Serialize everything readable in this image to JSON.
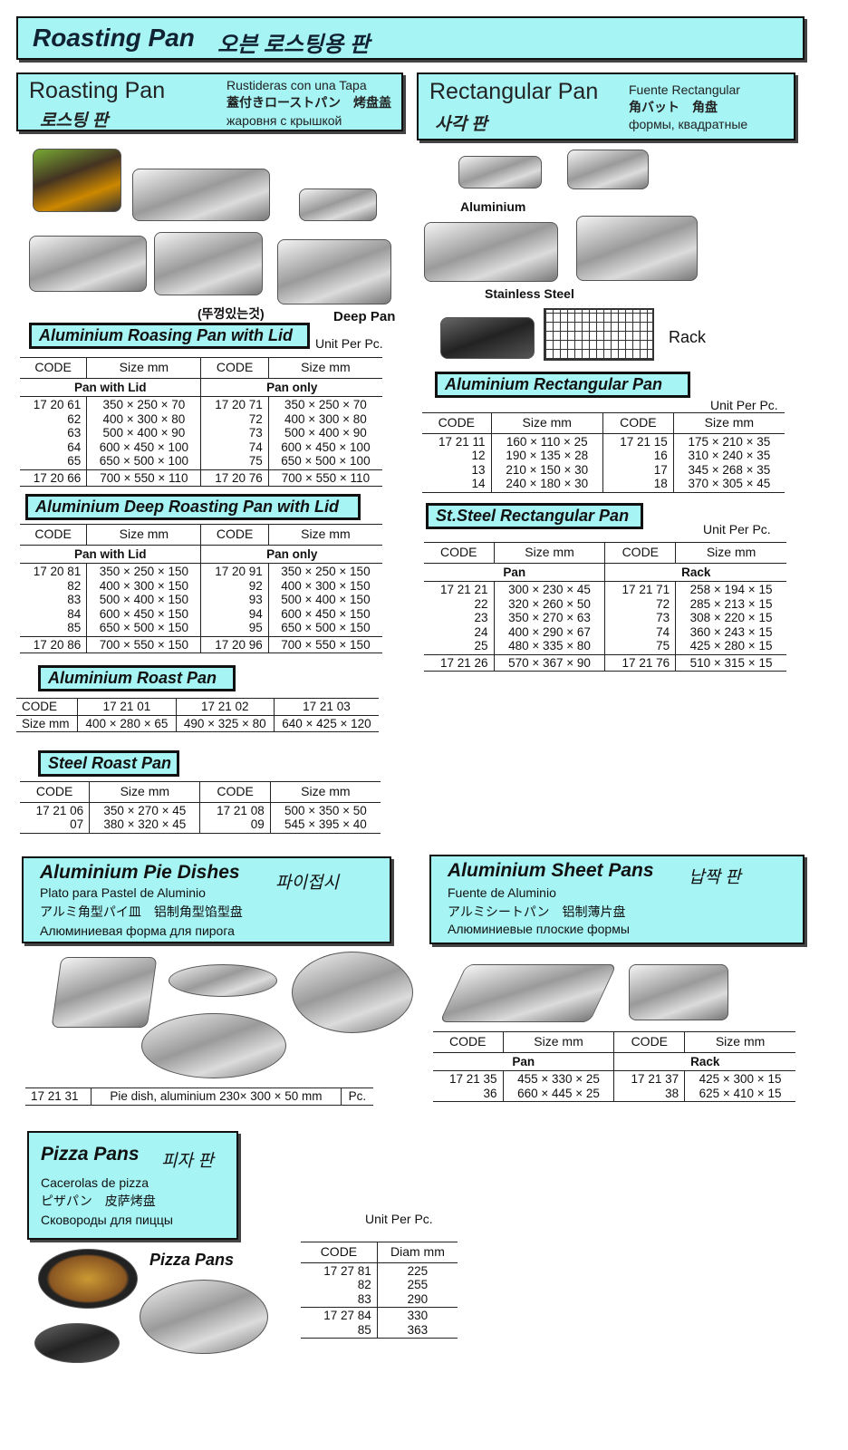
{
  "banner": {
    "en": "Roasting Pan",
    "ko": "오븐 로스팅용 판"
  },
  "roast_header": {
    "en": "Roasting Pan",
    "ko": "로스팅 판",
    "es": "Rustideras con una Tapa",
    "ja_zh": "蓋付きローストパン　烤盘盖",
    "ru": "жаровня с крышкой"
  },
  "rect_header": {
    "en": "Rectangular Pan",
    "ko": "사각 판",
    "es": "Fuente Rectangular",
    "ja_zh": "角バット　角盘",
    "ru": "формы, квадратные"
  },
  "labels": {
    "lid_ko": "(뚜껑있는것)",
    "deep_pan": "Deep Pan",
    "aluminium": "Aluminium",
    "stainless": "Stainless Steel",
    "rack": "Rack",
    "pizza_pans": "Pizza Pans",
    "unit": "Unit Per Pc."
  },
  "titles": {
    "t1": "Aluminium Roasing Pan with Lid",
    "t2": "Aluminium Deep Roasting Pan with Lid",
    "t3": "Aluminium Roast Pan",
    "t4": "Steel Roast Pan",
    "t5": "Aluminium Rectangular Pan",
    "t6": "St.Steel Rectangular Pan"
  },
  "tables": {
    "t1": {
      "header": [
        "CODE",
        "Size mm",
        "CODE",
        "Size mm"
      ],
      "sub": [
        "Pan with Lid",
        "Pan only"
      ],
      "groups": [
        [
          [
            "17 20 61",
            "62",
            "63",
            "64",
            "65"
          ],
          [
            "350 × 250 ×   70",
            "400 × 300 ×   80",
            "500 × 400 ×   90",
            "600 × 450 × 100",
            "650 × 500 × 100"
          ],
          [
            "17 20 71",
            "72",
            "73",
            "74",
            "75"
          ],
          [
            "350 × 250 ×   70",
            "400 × 300 ×   80",
            "500 × 400 ×   90",
            "600 × 450 × 100",
            "650 × 500 × 100"
          ]
        ],
        [
          [
            "17 20 66"
          ],
          [
            "700 × 550 × 110"
          ],
          [
            "17 20 76"
          ],
          [
            "700 × 550 × 110"
          ]
        ]
      ]
    },
    "t2": {
      "header": [
        "CODE",
        "Size mm",
        "CODE",
        "Size mm"
      ],
      "sub": [
        "Pan with Lid",
        "Pan only"
      ],
      "groups": [
        [
          [
            "17 20 81",
            "82",
            "83",
            "84",
            "85"
          ],
          [
            "350 × 250 × 150",
            "400 × 300 × 150",
            "500 × 400 × 150",
            "600 × 450 × 150",
            "650 × 500 × 150"
          ],
          [
            "17 20 91",
            "92",
            "93",
            "94",
            "95"
          ],
          [
            "350 × 250 × 150",
            "400 × 300 × 150",
            "500 × 400 × 150",
            "600 × 450 × 150",
            "650 × 500 × 150"
          ]
        ],
        [
          [
            "17 20 86"
          ],
          [
            "700 × 550 × 150"
          ],
          [
            "17 20 96"
          ],
          [
            "700 × 550 × 150"
          ]
        ]
      ]
    },
    "t3": {
      "rows": [
        [
          "CODE",
          "17 21 01",
          "17 21 02",
          "17 21 03"
        ],
        [
          "Size mm",
          "400 × 280 × 65",
          "490 × 325 × 80",
          "640 × 425 × 120"
        ]
      ]
    },
    "t4": {
      "header": [
        "CODE",
        "Size mm",
        "CODE",
        "Size mm"
      ],
      "groups": [
        [
          [
            "17 21 06",
            "07"
          ],
          [
            "350 × 270 × 45",
            "380 × 320 × 45"
          ],
          [
            "17 21 08",
            "09"
          ],
          [
            "500 × 350 × 50",
            "545 × 395 × 40"
          ]
        ]
      ]
    },
    "t5": {
      "header": [
        "CODE",
        "Size mm",
        "CODE",
        "Size mm"
      ],
      "groups": [
        [
          [
            "17 21 11",
            "12",
            "13",
            "14"
          ],
          [
            "160 × 110 × 25",
            "190 × 135 × 28",
            "210 × 150 × 30",
            "240 × 180 × 30"
          ],
          [
            "17 21 15",
            "16",
            "17",
            "18"
          ],
          [
            "175 × 210 × 35",
            "310 × 240 × 35",
            "345 × 268 × 35",
            "370 × 305 × 45"
          ]
        ]
      ]
    },
    "t6": {
      "header": [
        "CODE",
        "Size mm",
        "CODE",
        "Size mm"
      ],
      "sub": [
        "Pan",
        "Rack"
      ],
      "groups": [
        [
          [
            "17 21 21",
            "22",
            "23",
            "24",
            "25"
          ],
          [
            "300 × 230 × 45",
            "320 × 260 × 50",
            "350 × 270 × 63",
            "400 × 290 × 67",
            "480 × 335 × 80"
          ],
          [
            "17 21 71",
            "72",
            "73",
            "74",
            "75"
          ],
          [
            "258 × 194 × 15",
            "285 × 213 × 15",
            "308 × 220 × 15",
            "360 × 243 × 15",
            "425 × 280 × 15"
          ]
        ],
        [
          [
            "17 21 26"
          ],
          [
            "570 × 367 × 90"
          ],
          [
            "17 21 76"
          ],
          [
            "510 × 315 × 15"
          ]
        ]
      ]
    },
    "pie": {
      "rows": [
        [
          "17 21 31",
          "Pie dish, aluminium 230× 300 × 50 mm",
          "Pc."
        ]
      ]
    },
    "sheet": {
      "header": [
        "CODE",
        "Size mm",
        "CODE",
        "Size mm"
      ],
      "sub": [
        "Pan",
        "Rack"
      ],
      "groups": [
        [
          [
            "17 21 35",
            "36"
          ],
          [
            "455 × 330 × 25",
            "660 × 445 × 25"
          ],
          [
            "17 21 37",
            "38"
          ],
          [
            "425 × 300 × 15",
            "625 × 410 × 15"
          ]
        ]
      ]
    },
    "pizza": {
      "header": [
        "CODE",
        "Diam mm"
      ],
      "groups": [
        [
          [
            "17 27 81",
            "82",
            "83"
          ],
          [
            "225",
            "255",
            "290"
          ]
        ],
        [
          [
            "17 27 84",
            "85"
          ],
          [
            "330",
            "363"
          ]
        ]
      ]
    }
  },
  "pie_box": {
    "en": "Aluminium Pie Dishes",
    "ko": "파이접시",
    "es": "Plato para Pastel de Aluminio",
    "ja_zh": "アルミ角型パイ皿　铝制角型馅型盘",
    "ru": "Алюминиевая форма для пирога"
  },
  "sheet_box": {
    "en": "Aluminium Sheet Pans",
    "ko": "납짝 판",
    "es": "Fuente de Aluminio",
    "ja_zh": "アルミシートパン　铝制薄片盘",
    "ru": "Алюминиевые плоские формы"
  },
  "pizza_box": {
    "en": "Pizza Pans",
    "ko": "피자 판",
    "es": "Cacerolas de pizza",
    "ja_zh": "ピザパン　皮萨烤盘",
    "ru": "Сковороды для пиццы"
  }
}
